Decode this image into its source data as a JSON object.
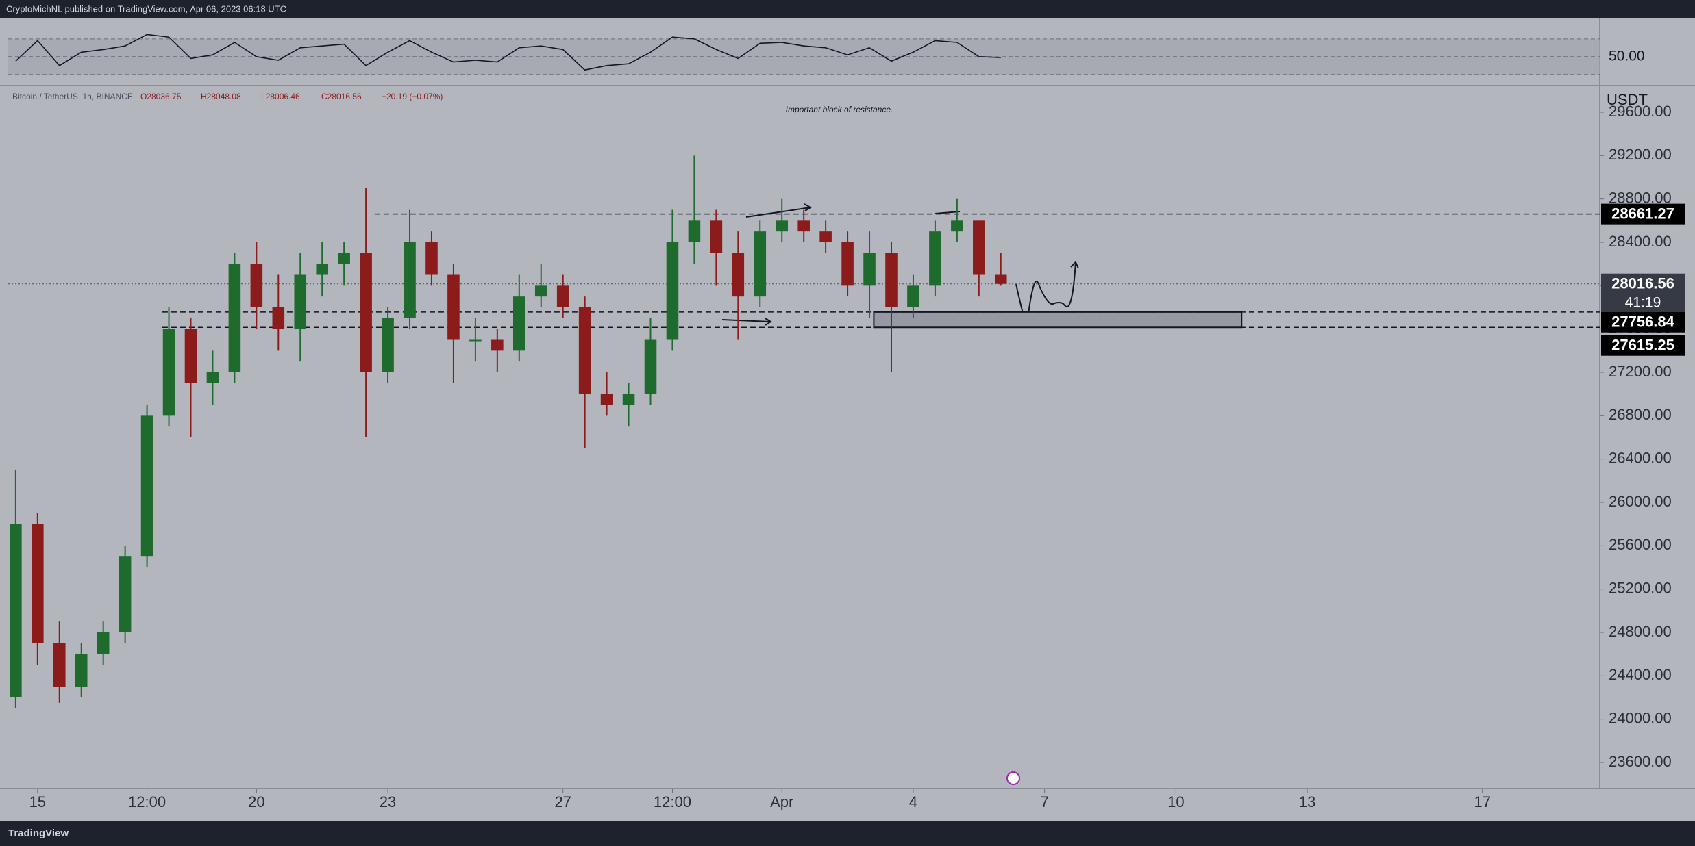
{
  "header": {
    "publisher": "CryptoMichNL published on TradingView.com, Apr 06, 2023 06:18 UTC"
  },
  "footer": {
    "brand": "TradingView"
  },
  "chart_data": [
    {
      "type": "line",
      "name": "rsi",
      "color": "#131722",
      "x": [
        -0.5,
        0,
        0.5,
        1,
        1.5,
        2,
        2.5,
        3,
        3.5,
        4,
        4.5,
        5,
        5.5,
        6,
        6.5,
        7,
        7.5,
        8,
        8.5,
        9,
        9.5,
        10,
        10.5,
        11,
        11.5,
        12,
        12.5,
        13,
        13.5,
        14,
        14.5,
        15,
        15.5,
        16,
        16.5,
        17,
        17.5,
        18,
        18.5,
        19,
        19.5,
        20,
        20.5,
        21,
        21.5,
        22
      ],
      "values": [
        45,
        68,
        40,
        55,
        58,
        62,
        75,
        72,
        48,
        52,
        66,
        50,
        46,
        60,
        62,
        64,
        40,
        55,
        68,
        55,
        44,
        46,
        44,
        60,
        62,
        58,
        35,
        40,
        42,
        55,
        72,
        70,
        58,
        48,
        65,
        66,
        62,
        60,
        52,
        60,
        45,
        55,
        68,
        66,
        50,
        49
      ],
      "ylim": [
        19,
        93
      ],
      "yticks": [
        {
          "value": 50,
          "label": "50.00"
        }
      ],
      "band": [
        30,
        70
      ],
      "xlim": [
        -0.67,
        35.68
      ]
    },
    {
      "type": "candlestick",
      "instrument": "Bitcoin / TetherUS, 1h, BINANCE",
      "ohlc_labels": [
        "O28036.75",
        "H28048.08",
        "L28006.46",
        "C28016.56",
        "−20.19 (−0.07%)"
      ],
      "annotation": "Important block of resistance.",
      "currency": "USDT",
      "up_color": "#1e6b2d",
      "down_color": "#8c1c1c",
      "x": [
        -0.5,
        0,
        0.5,
        1,
        1.5,
        2,
        2.5,
        3,
        3.5,
        4,
        4.5,
        5,
        5.5,
        6,
        6.5,
        7,
        7.5,
        8,
        8.5,
        9,
        9.5,
        10,
        10.5,
        11,
        11.5,
        12,
        12.5,
        13,
        13.5,
        14,
        14.5,
        15,
        15.5,
        16,
        16.5,
        17,
        17.5,
        18,
        18.5,
        19,
        19.5,
        20,
        20.5,
        21,
        21.5,
        22
      ],
      "open": [
        24200,
        25800,
        24700,
        24300,
        24600,
        24800,
        25500,
        26800,
        27600,
        27100,
        27200,
        28200,
        27800,
        27600,
        28100,
        28200,
        28300,
        27200,
        27700,
        28400,
        28100,
        27500,
        27500,
        27400,
        27900,
        28000,
        27800,
        27000,
        26900,
        27000,
        27500,
        28400,
        28600,
        28300,
        27900,
        28500,
        28600,
        28500,
        28400,
        28000,
        28300,
        27800,
        28000,
        28500,
        28600,
        28100
      ],
      "high": [
        26300,
        25900,
        24900,
        24700,
        24900,
        25600,
        26900,
        27800,
        27700,
        27400,
        28300,
        28400,
        28100,
        28300,
        28400,
        28400,
        28900,
        27800,
        28700,
        28500,
        28200,
        27700,
        27600,
        28100,
        28200,
        28100,
        27900,
        27200,
        27100,
        27700,
        28700,
        29200,
        28700,
        28500,
        28600,
        28800,
        28700,
        28600,
        28500,
        28500,
        28400,
        28100,
        28600,
        28800,
        28600,
        28300
      ],
      "low": [
        24100,
        24500,
        24150,
        24200,
        24500,
        24700,
        25400,
        26700,
        26600,
        26900,
        27100,
        27600,
        27400,
        27300,
        27900,
        28000,
        26600,
        27100,
        27600,
        28000,
        27100,
        27300,
        27200,
        27300,
        27800,
        27700,
        26500,
        26800,
        26700,
        26900,
        27400,
        28200,
        28000,
        27500,
        27800,
        28400,
        28400,
        28300,
        27900,
        27700,
        27200,
        27700,
        27900,
        28400,
        27900,
        28000
      ],
      "close": [
        25800,
        24700,
        24300,
        24600,
        24800,
        25500,
        26800,
        27600,
        27100,
        27200,
        28200,
        27800,
        27600,
        28100,
        28200,
        28300,
        27200,
        27700,
        28400,
        28100,
        27500,
        27500,
        27400,
        27900,
        28000,
        27800,
        27000,
        26900,
        27000,
        27500,
        28400,
        28600,
        28300,
        27900,
        28500,
        28600,
        28500,
        28400,
        28000,
        28300,
        27800,
        28000,
        28500,
        28600,
        28100,
        28016.56
      ],
      "last_price": 28016.56,
      "countdown": "41:19",
      "levels": [
        28661.27,
        27756.84,
        27615.25
      ],
      "zone": {
        "x": [
          19.1,
          27.5
        ],
        "y": [
          27615.25,
          27756.84
        ]
      },
      "xlim": [
        -0.67,
        35.68
      ],
      "xticks": [
        {
          "value": 0,
          "label": "15"
        },
        {
          "value": 2.5,
          "label": "12:00"
        },
        {
          "value": 5,
          "label": "20"
        },
        {
          "value": 8,
          "label": "23"
        },
        {
          "value": 12,
          "label": "27"
        },
        {
          "value": 14.5,
          "label": "12:00"
        },
        {
          "value": 17,
          "label": "Apr"
        },
        {
          "value": 20,
          "label": "4"
        },
        {
          "value": 23,
          "label": "7"
        },
        {
          "value": 26,
          "label": "10"
        },
        {
          "value": 29,
          "label": "13"
        },
        {
          "value": 33,
          "label": "17"
        }
      ],
      "ylim": [
        23360,
        29840
      ],
      "yticks": [
        {
          "value": 23600,
          "label": "23600.00"
        },
        {
          "value": 24000,
          "label": "24000.00"
        },
        {
          "value": 24400,
          "label": "24400.00"
        },
        {
          "value": 24800,
          "label": "24800.00"
        },
        {
          "value": 25200,
          "label": "25200.00"
        },
        {
          "value": 25600,
          "label": "25600.00"
        },
        {
          "value": 26000,
          "label": "26000.00"
        },
        {
          "value": 26400,
          "label": "26400.00"
        },
        {
          "value": 26800,
          "label": "26800.00"
        },
        {
          "value": 27200,
          "label": "27200.00"
        },
        {
          "value": 27600,
          "label": "27600.00"
        },
        {
          "value": 28000,
          "label": "28000.00"
        },
        {
          "value": 28400,
          "label": "28400.00"
        },
        {
          "value": 28800,
          "label": "28800.00"
        },
        {
          "value": 29200,
          "label": "29200.00"
        },
        {
          "value": 29600,
          "label": "29600.00"
        }
      ],
      "grid": false
    }
  ]
}
